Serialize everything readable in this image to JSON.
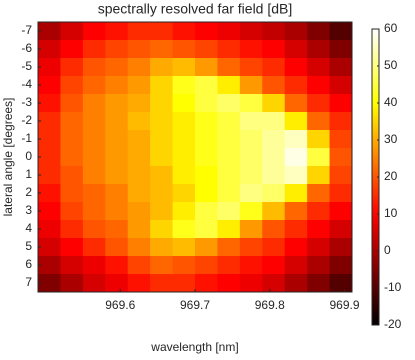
{
  "chart_data": {
    "type": "heatmap",
    "title": "spectrally resolved far field [dB]",
    "xlabel": "wavelength [nm]",
    "ylabel": "lateral angle [degrees]",
    "colormap": "hot",
    "xbins": [
      969.49,
      969.52,
      969.55,
      969.58,
      969.61,
      969.64,
      969.67,
      969.7,
      969.73,
      969.76,
      969.79,
      969.82,
      969.85,
      969.88,
      969.91
    ],
    "y": [
      -7,
      -6,
      -5,
      -4,
      -3,
      -2,
      -1,
      0,
      1,
      2,
      3,
      4,
      5,
      6,
      7
    ],
    "z": [
      [
        0,
        5,
        10,
        12,
        15,
        15,
        12,
        10,
        8,
        5,
        3,
        0,
        -5,
        -10
      ],
      [
        5,
        10,
        15,
        18,
        20,
        22,
        20,
        18,
        15,
        12,
        10,
        5,
        0,
        -5
      ],
      [
        8,
        15,
        20,
        22,
        25,
        30,
        32,
        28,
        22,
        18,
        15,
        10,
        5,
        0
      ],
      [
        10,
        18,
        22,
        25,
        28,
        35,
        42,
        45,
        38,
        28,
        20,
        15,
        10,
        5
      ],
      [
        12,
        20,
        25,
        28,
        30,
        35,
        40,
        45,
        48,
        45,
        35,
        22,
        15,
        10
      ],
      [
        15,
        22,
        25,
        28,
        32,
        35,
        38,
        42,
        45,
        50,
        50,
        38,
        22,
        15
      ],
      [
        15,
        22,
        25,
        28,
        30,
        35,
        38,
        42,
        45,
        48,
        52,
        55,
        35,
        18
      ],
      [
        15,
        22,
        25,
        28,
        30,
        35,
        38,
        42,
        45,
        48,
        52,
        58,
        45,
        20
      ],
      [
        15,
        20,
        25,
        28,
        30,
        32,
        38,
        40,
        45,
        48,
        52,
        55,
        35,
        18
      ],
      [
        12,
        20,
        22,
        25,
        30,
        32,
        35,
        40,
        45,
        50,
        48,
        38,
        22,
        15
      ],
      [
        10,
        18,
        22,
        25,
        28,
        32,
        38,
        45,
        48,
        42,
        32,
        22,
        15,
        10
      ],
      [
        8,
        15,
        20,
        22,
        28,
        35,
        42,
        45,
        38,
        28,
        20,
        15,
        10,
        5
      ],
      [
        5,
        10,
        15,
        20,
        25,
        30,
        32,
        28,
        22,
        18,
        15,
        10,
        5,
        0
      ],
      [
        0,
        5,
        8,
        12,
        18,
        22,
        20,
        18,
        15,
        12,
        10,
        5,
        0,
        -5
      ],
      [
        -5,
        0,
        5,
        8,
        12,
        15,
        15,
        12,
        10,
        8,
        5,
        0,
        -5,
        -10
      ]
    ],
    "xlim": [
      969.49,
      969.91
    ],
    "xticks": [
      969.6,
      969.7,
      969.8,
      969.9
    ],
    "ylim": [
      -7.5,
      7.5
    ],
    "yticks": [
      -7,
      -6,
      -5,
      -4,
      -3,
      -2,
      -1,
      0,
      1,
      2,
      3,
      4,
      5,
      6,
      7
    ],
    "clim": [
      -20,
      60
    ],
    "cticks": [
      -20,
      -10,
      0,
      10,
      20,
      30,
      40,
      50,
      60
    ]
  }
}
